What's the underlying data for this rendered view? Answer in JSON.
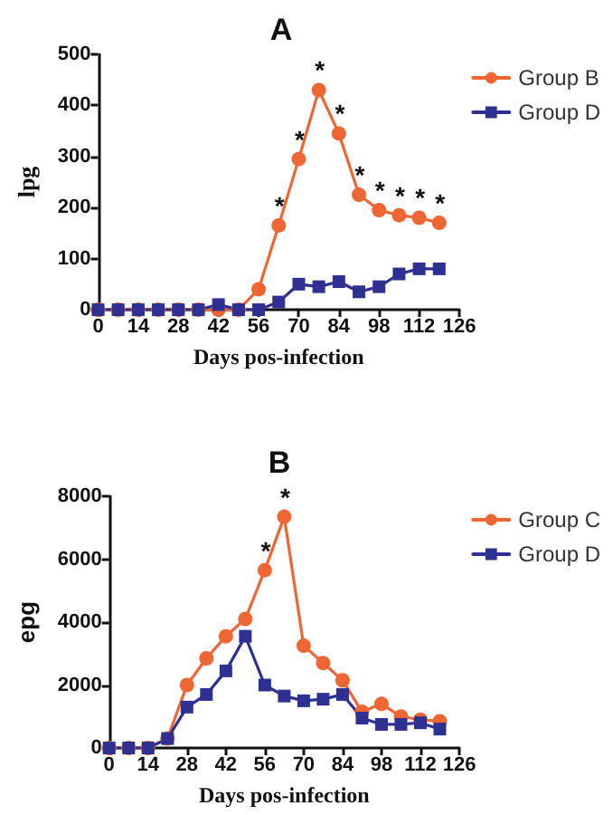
{
  "chart_data": [
    {
      "type": "line",
      "title": "A",
      "xlabel": "Days pos-infection",
      "ylabel": "lpg",
      "x": [
        0,
        7,
        14,
        21,
        28,
        35,
        42,
        49,
        56,
        63,
        70,
        77,
        84,
        91,
        98,
        105,
        112,
        119
      ],
      "series": [
        {
          "name": "Group B",
          "color": "#ee6633",
          "marker": "circle",
          "values": [
            0,
            0,
            0,
            0,
            0,
            0,
            0,
            0,
            40,
            165,
            295,
            430,
            345,
            225,
            195,
            185,
            180,
            170
          ]
        },
        {
          "name": "Group D",
          "color": "#2e3192",
          "marker": "square",
          "values": [
            0,
            0,
            0,
            0,
            0,
            0,
            10,
            0,
            0,
            15,
            50,
            45,
            55,
            35,
            45,
            70,
            80,
            80
          ]
        }
      ],
      "xlim": [
        0,
        126
      ],
      "xticks": [
        0,
        14,
        28,
        42,
        56,
        70,
        84,
        98,
        112,
        126
      ],
      "ylim": [
        0,
        500
      ],
      "yticks": [
        0,
        100,
        200,
        300,
        400,
        500
      ],
      "grid": false,
      "legend": "top right",
      "annotations": [
        {
          "text": "*",
          "x": 63,
          "y": 165
        },
        {
          "text": "*",
          "x": 70,
          "y": 295
        },
        {
          "text": "*",
          "x": 77,
          "y": 430
        },
        {
          "text": "*",
          "x": 84,
          "y": 345
        },
        {
          "text": "*",
          "x": 91,
          "y": 225
        },
        {
          "text": "*",
          "x": 98,
          "y": 195
        },
        {
          "text": "*",
          "x": 105,
          "y": 185
        },
        {
          "text": "*",
          "x": 112,
          "y": 180
        },
        {
          "text": "*",
          "x": 119,
          "y": 170
        }
      ]
    },
    {
      "type": "line",
      "title": "B",
      "xlabel": "Days pos-infection",
      "ylabel": "epg",
      "x": [
        0,
        7,
        14,
        21,
        28,
        35,
        42,
        49,
        56,
        63,
        70,
        77,
        84,
        91,
        98,
        105,
        112,
        119
      ],
      "series": [
        {
          "name": "Group C",
          "color": "#ee6633",
          "marker": "circle",
          "values": [
            0,
            0,
            0,
            300,
            2000,
            2850,
            3550,
            4100,
            5650,
            7350,
            3250,
            2700,
            2150,
            1150,
            1400,
            1000,
            900,
            850
          ]
        },
        {
          "name": "Group D",
          "color": "#2e3192",
          "marker": "square",
          "values": [
            0,
            0,
            0,
            300,
            1300,
            1700,
            2450,
            3550,
            2000,
            1650,
            1500,
            1550,
            1700,
            950,
            750,
            750,
            800,
            600
          ]
        }
      ],
      "xlim": [
        0,
        126
      ],
      "xticks": [
        0,
        14,
        28,
        42,
        56,
        70,
        84,
        98,
        112,
        126
      ],
      "ylim": [
        0,
        8000
      ],
      "yticks": [
        0,
        2000,
        4000,
        6000,
        8000
      ],
      "grid": false,
      "legend": "top right",
      "annotations": [
        {
          "text": "*",
          "x": 56,
          "y": 5650
        },
        {
          "text": "*",
          "x": 63,
          "y": 7350
        }
      ]
    }
  ]
}
